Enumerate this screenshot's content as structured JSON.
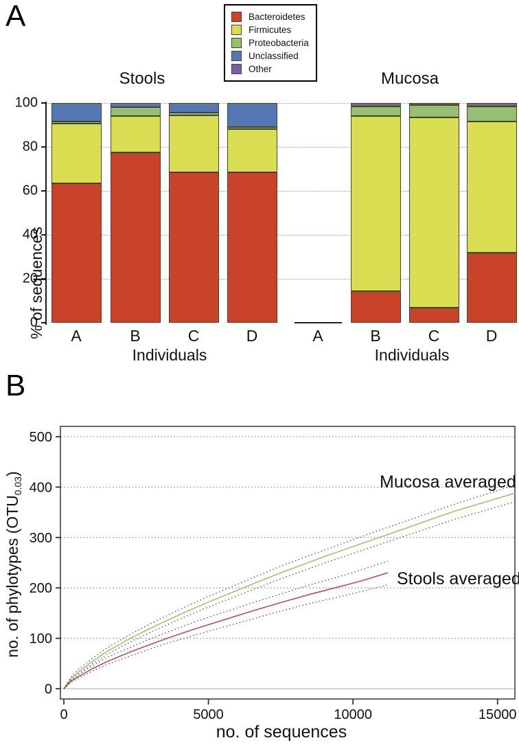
{
  "figure": {
    "panelA_letter": "A",
    "panelB_letter": "B"
  },
  "legend": {
    "items": [
      {
        "label": "Bacteroidetes",
        "color": "#c9432a"
      },
      {
        "label": "Firmicutes",
        "color": "#d9dd52"
      },
      {
        "label": "Proteobacteria",
        "color": "#97bf74"
      },
      {
        "label": "Unclassified",
        "color": "#5577b3"
      },
      {
        "label": "Other",
        "color": "#7d60a0"
      }
    ]
  },
  "chart_data": [
    {
      "type": "bar",
      "subtype": "stacked-percentage",
      "ylabel": "% of sequences",
      "xlabel": "Individuals",
      "yticks": [
        0,
        20,
        40,
        60,
        80,
        100
      ],
      "ylim": [
        0,
        100
      ],
      "series_order": [
        "Bacteroidetes",
        "Firmicutes",
        "Proteobacteria",
        "Unclassified",
        "Other"
      ],
      "groups": [
        {
          "name": "Stools",
          "bars": [
            {
              "label": "A",
              "values": {
                "Bacteroidetes": 63.5,
                "Firmicutes": 27,
                "Proteobacteria": 1,
                "Unclassified": 8.5,
                "Other": 0
              }
            },
            {
              "label": "B",
              "values": {
                "Bacteroidetes": 77.5,
                "Firmicutes": 16.5,
                "Proteobacteria": 4,
                "Unclassified": 2,
                "Other": 0
              }
            },
            {
              "label": "C",
              "values": {
                "Bacteroidetes": 68.5,
                "Firmicutes": 26,
                "Proteobacteria": 1,
                "Unclassified": 4.5,
                "Other": 0
              }
            },
            {
              "label": "D",
              "values": {
                "Bacteroidetes": 68.5,
                "Firmicutes": 19.5,
                "Proteobacteria": 1,
                "Unclassified": 11,
                "Other": 0
              }
            }
          ]
        },
        {
          "name": "Mucosa",
          "bars": [
            {
              "label": "A",
              "values": {
                "Bacteroidetes": 0,
                "Firmicutes": 0,
                "Proteobacteria": 0,
                "Unclassified": 0,
                "Other": 0
              }
            },
            {
              "label": "B",
              "values": {
                "Bacteroidetes": 14.5,
                "Firmicutes": 79.5,
                "Proteobacteria": 4.5,
                "Unclassified": 0,
                "Other": 1.5
              }
            },
            {
              "label": "C",
              "values": {
                "Bacteroidetes": 7,
                "Firmicutes": 86.5,
                "Proteobacteria": 5.5,
                "Unclassified": 0,
                "Other": 1
              }
            },
            {
              "label": "D",
              "values": {
                "Bacteroidetes": 32,
                "Firmicutes": 59.5,
                "Proteobacteria": 7,
                "Unclassified": 0,
                "Other": 1.5
              }
            }
          ]
        }
      ]
    },
    {
      "type": "line",
      "subtype": "rarefaction-curves",
      "xlabel": "no. of sequences",
      "ylabel_prefix": "no. of phylotypes (OTU",
      "ylabel_sub": "0.03",
      "ylabel_suffix": ")",
      "xticks": [
        0,
        5000,
        10000,
        15000
      ],
      "yticks": [
        0,
        100,
        200,
        300,
        400,
        500
      ],
      "xlim": [
        -200,
        15600
      ],
      "ylim": [
        -20,
        520
      ],
      "grid": "dotted horizontal at 100..500, solid light line at 0",
      "annotations": [
        {
          "text": "Mucosa averaged"
        },
        {
          "text": "Stools averaged"
        }
      ],
      "series": [
        {
          "name": "Mucosa averaged",
          "color": "#a6c06a",
          "style": "solid",
          "x": [
            0,
            250,
            500,
            1000,
            1500,
            2300,
            3000,
            4000,
            5000,
            6200,
            7500,
            9000,
            10500,
            12000,
            13500,
            15600
          ],
          "y": [
            0,
            20,
            33,
            55,
            74,
            100,
            120,
            147,
            172,
            200,
            230,
            262,
            292,
            322,
            352,
            388
          ]
        },
        {
          "name": "Mucosa upper CI",
          "color": "#3f4a6b",
          "style": "dotted",
          "x": [
            0,
            250,
            500,
            1000,
            1500,
            2300,
            3000,
            4000,
            5000,
            6200,
            7500,
            9000,
            10500,
            12000,
            13500,
            15600
          ],
          "y": [
            0,
            23,
            38,
            61,
            81,
            108,
            129,
            157,
            183,
            212,
            243,
            275,
            306,
            336,
            366,
            404
          ]
        },
        {
          "name": "Mucosa lower CI",
          "color": "#3f4a6b",
          "style": "dotted",
          "x": [
            0,
            250,
            500,
            1000,
            1500,
            2300,
            3000,
            4000,
            5000,
            6200,
            7500,
            9000,
            10500,
            12000,
            13500,
            15600
          ],
          "y": [
            0,
            17,
            29,
            50,
            68,
            93,
            112,
            138,
            162,
            189,
            218,
            249,
            278,
            307,
            336,
            371
          ]
        },
        {
          "name": "Stools averaged",
          "color": "#c0504d",
          "style": "solid",
          "x": [
            0,
            250,
            500,
            1000,
            1500,
            2300,
            3000,
            3570,
            4500,
            5500,
            6500,
            7500,
            8500,
            9500,
            10300,
            11200
          ],
          "y": [
            0,
            15,
            24,
            40,
            54,
            73,
            88,
            100,
            118,
            136,
            154,
            171,
            187,
            202,
            214,
            230
          ]
        },
        {
          "name": "Stools upper CI",
          "color": "#3f4a6b",
          "style": "dotted",
          "x": [
            0,
            250,
            500,
            1000,
            1500,
            2300,
            3000,
            3570,
            4500,
            5500,
            6500,
            7500,
            8500,
            9500,
            10300,
            11200
          ],
          "y": [
            0,
            17,
            28,
            46,
            62,
            82,
            99,
            112,
            132,
            151,
            170,
            188,
            206,
            222,
            236,
            253
          ]
        },
        {
          "name": "Stools lower CI",
          "color": "#3f4a6b",
          "style": "dotted",
          "x": [
            0,
            250,
            500,
            1000,
            1500,
            2300,
            3000,
            3570,
            4500,
            5500,
            6500,
            7500,
            8500,
            9500,
            10300,
            11200
          ],
          "y": [
            0,
            13,
            21,
            35,
            48,
            65,
            79,
            90,
            106,
            122,
            138,
            154,
            169,
            182,
            193,
            206
          ]
        }
      ]
    }
  ]
}
